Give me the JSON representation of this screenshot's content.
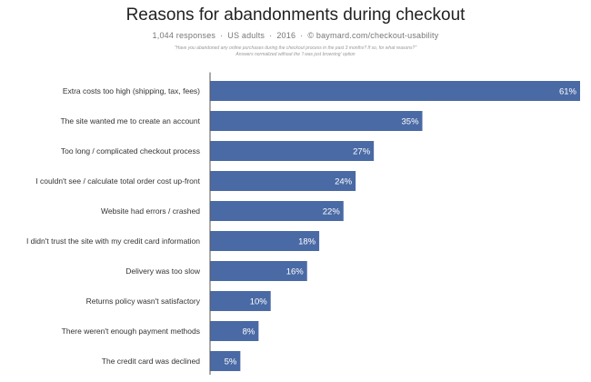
{
  "header": {
    "title": "Reasons for abandonments during checkout",
    "responses": "1,044 responses",
    "audience": "US adults",
    "year": "2016",
    "source": "© baymard.com/checkout-usability",
    "question": "\"Have you abandoned any online purchases during the checkout process in the past 3 months? If so, for what reasons?\"",
    "normalization": "Answers normalized without the 'I was just browsing' option"
  },
  "chart_data": {
    "type": "bar",
    "orientation": "horizontal",
    "title": "Reasons for abandonments during checkout",
    "categories": [
      "Extra costs too high (shipping, tax, fees)",
      "The site wanted me to create an account",
      "Too long / complicated checkout process",
      "I couldn't see / calculate total order cost up-front",
      "Website had errors / crashed",
      "I didn't trust the site with my credit card information",
      "Delivery was too slow",
      "Returns policy wasn't satisfactory",
      "There weren't enough payment methods",
      "The credit card was declined"
    ],
    "values": [
      61,
      35,
      27,
      24,
      22,
      18,
      16,
      10,
      8,
      5
    ],
    "value_labels": [
      "61%",
      "35%",
      "27%",
      "24%",
      "22%",
      "18%",
      "16%",
      "10%",
      "8%",
      "5%"
    ],
    "xlim": [
      0,
      61
    ],
    "bar_color": "#4a6aa5",
    "axis_color": "#555555",
    "grid": false,
    "legend": "none"
  }
}
